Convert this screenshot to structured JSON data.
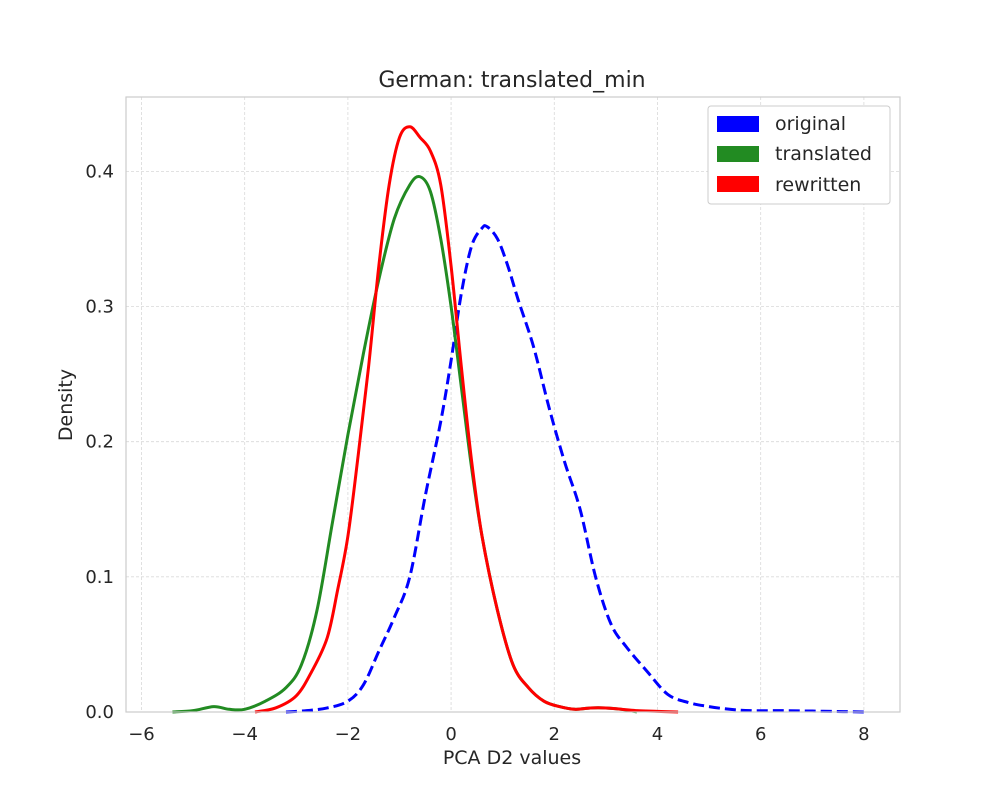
{
  "chart_data": {
    "type": "line",
    "title": "German: translated_min",
    "xlabel": "PCA D2 values",
    "ylabel": "Density",
    "xlim": [
      -6.3,
      8.7
    ],
    "ylim": [
      0,
      0.455
    ],
    "xticks": [
      -6,
      -4,
      -2,
      0,
      2,
      4,
      6,
      8
    ],
    "xtick_labels": [
      "−6",
      "−4",
      "−2",
      "0",
      "2",
      "4",
      "6",
      "8"
    ],
    "yticks": [
      0.0,
      0.1,
      0.2,
      0.3,
      0.4
    ],
    "ytick_labels": [
      "0.0",
      "0.1",
      "0.2",
      "0.3",
      "0.4"
    ],
    "grid": true,
    "legend_position": "top-right",
    "series": [
      {
        "name": "original",
        "color": "#0000ff",
        "line_style": "dashed",
        "x": [
          -3.2,
          -2.8,
          -2.4,
          -2.0,
          -1.7,
          -1.4,
          -1.1,
          -0.8,
          -0.5,
          -0.2,
          0.0,
          0.2,
          0.4,
          0.6,
          0.7,
          0.9,
          1.1,
          1.3,
          1.6,
          1.9,
          2.2,
          2.5,
          2.8,
          3.1,
          3.4,
          3.8,
          4.2,
          4.6,
          5.0,
          5.4,
          5.8,
          6.4,
          7.0,
          7.6,
          8.0
        ],
        "y": [
          0.0,
          0.001,
          0.003,
          0.008,
          0.02,
          0.045,
          0.07,
          0.1,
          0.16,
          0.215,
          0.26,
          0.31,
          0.345,
          0.358,
          0.359,
          0.35,
          0.33,
          0.305,
          0.27,
          0.225,
          0.185,
          0.15,
          0.1,
          0.065,
          0.048,
          0.03,
          0.013,
          0.007,
          0.004,
          0.002,
          0.001,
          0.001,
          0.0007,
          0.0003,
          0.0
        ]
      },
      {
        "name": "translated",
        "color": "#228b22",
        "line_style": "solid",
        "x": [
          -5.4,
          -5.0,
          -4.6,
          -4.3,
          -4.0,
          -3.6,
          -3.2,
          -2.9,
          -2.6,
          -2.3,
          -2.0,
          -1.7,
          -1.4,
          -1.1,
          -0.8,
          -0.6,
          -0.4,
          -0.2,
          0.0,
          0.2,
          0.4,
          0.6,
          0.9,
          1.2,
          1.5,
          1.8,
          2.1,
          2.4,
          2.7,
          3.0,
          3.3,
          3.6
        ],
        "y": [
          0.0,
          0.001,
          0.004,
          0.002,
          0.002,
          0.008,
          0.018,
          0.035,
          0.075,
          0.14,
          0.205,
          0.265,
          0.32,
          0.365,
          0.39,
          0.396,
          0.385,
          0.35,
          0.3,
          0.24,
          0.18,
          0.13,
          0.075,
          0.035,
          0.018,
          0.008,
          0.004,
          0.002,
          0.003,
          0.003,
          0.002,
          0.0
        ]
      },
      {
        "name": "rewritten",
        "color": "#ff0000",
        "line_style": "solid",
        "x": [
          -3.8,
          -3.4,
          -3.0,
          -2.7,
          -2.4,
          -2.2,
          -2.0,
          -1.8,
          -1.6,
          -1.4,
          -1.2,
          -1.0,
          -0.8,
          -0.6,
          -0.4,
          -0.2,
          0.0,
          0.2,
          0.4,
          0.6,
          0.9,
          1.2,
          1.5,
          1.8,
          2.1,
          2.4,
          2.7,
          3.0,
          3.3,
          3.6,
          4.0,
          4.4
        ],
        "y": [
          0.0,
          0.003,
          0.012,
          0.03,
          0.055,
          0.09,
          0.13,
          0.19,
          0.255,
          0.33,
          0.39,
          0.425,
          0.433,
          0.425,
          0.415,
          0.39,
          0.33,
          0.255,
          0.185,
          0.13,
          0.075,
          0.035,
          0.018,
          0.008,
          0.004,
          0.002,
          0.003,
          0.003,
          0.002,
          0.001,
          0.0005,
          0.0
        ]
      }
    ]
  }
}
